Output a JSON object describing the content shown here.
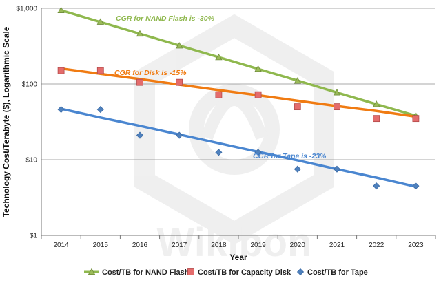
{
  "chart_data": {
    "type": "scatter",
    "title": "",
    "xlabel": "Year",
    "ylabel": "Technology Cost/Terabyte ($), Logarithmic Scale",
    "y_scale": "log",
    "ylim": [
      1,
      1000
    ],
    "y_ticks": [
      1,
      10,
      100,
      1000
    ],
    "y_tick_labels": [
      "$1",
      "$10",
      "$100",
      "$1,000"
    ],
    "categories": [
      "2014",
      "2015",
      "2016",
      "2017",
      "2018",
      "2019",
      "2020",
      "2021",
      "2022",
      "2023"
    ],
    "grid": "horizontal",
    "legend_position": "bottom",
    "series": [
      {
        "name": "Cost/TB for NAND Flash",
        "marker": "triangle",
        "color": "#9bbb59",
        "trend_color": "#8fb84e",
        "values": [
          940,
          660,
          460,
          320,
          225,
          158,
          110,
          77,
          54,
          38
        ],
        "trend": [
          940,
          658,
          461,
          322,
          226,
          158,
          111,
          77,
          54,
          38
        ],
        "annotation": "CGR for NAND Flash is -30%"
      },
      {
        "name": "Cost/TB for Capacity Disk",
        "marker": "square",
        "color": "#e46c6c",
        "trend_color": "#f07b12",
        "values": [
          150,
          150,
          105,
          105,
          72,
          72,
          50,
          50,
          35,
          35
        ],
        "trend": [
          160,
          136,
          116,
          98,
          83,
          71,
          60,
          51,
          44,
          37
        ],
        "annotation": "CGR for Disk is -15%"
      },
      {
        "name": "Cost/TB for Tape",
        "marker": "diamond",
        "color": "#4f81bd",
        "trend_color": "#4a86d0",
        "values": [
          46,
          46,
          21,
          21,
          12.5,
          12.5,
          7.5,
          7.5,
          4.5,
          4.5
        ],
        "trend": [
          47,
          36,
          28,
          21.5,
          16.5,
          12.7,
          9.8,
          7.5,
          5.8,
          4.4
        ],
        "annotation": "CGR for Tape is -23%"
      }
    ]
  },
  "watermark": "Wikibon"
}
